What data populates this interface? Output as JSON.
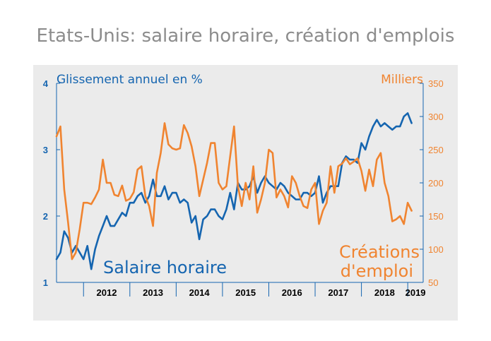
{
  "chart_data": {
    "type": "line",
    "title": "Etats-Unis: salaire horaire, création d'emplois",
    "y_left_label": "Glissement annuel en %",
    "y_right_label": "Milliers",
    "y_left_lim": [
      1,
      4
    ],
    "y_right_lim": [
      50,
      350
    ],
    "y_left_ticks": [
      "1",
      "2",
      "3",
      "4"
    ],
    "y_right_ticks": [
      "50",
      "100",
      "150",
      "200",
      "250",
      "300",
      "350"
    ],
    "x_range": [
      "2011-06",
      "2019-05"
    ],
    "x_ticks": [
      "2012",
      "2013",
      "2014",
      "2015",
      "2016",
      "2017",
      "2018",
      "2019"
    ],
    "annotations": {
      "wage": "Salaire horaire",
      "jobs_line1": "Créations",
      "jobs_line2": "d'emploi"
    },
    "colors": {
      "wage": "#1565b0",
      "jobs": "#f08430",
      "axis": "#1565b0",
      "panel": "#ebebeb"
    },
    "series": [
      {
        "name": "Salaire horaire",
        "axis": "left",
        "points": [
          [
            "2011-06",
            1.35
          ],
          [
            "2011-07",
            1.45
          ],
          [
            "2011-08",
            1.77
          ],
          [
            "2011-09",
            1.67
          ],
          [
            "2011-10",
            1.45
          ],
          [
            "2011-11",
            1.55
          ],
          [
            "2011-12",
            1.45
          ],
          [
            "2012-01",
            1.35
          ],
          [
            "2012-02",
            1.55
          ],
          [
            "2012-03",
            1.2
          ],
          [
            "2012-04",
            1.5
          ],
          [
            "2012-05",
            1.7
          ],
          [
            "2012-06",
            1.85
          ],
          [
            "2012-07",
            2.0
          ],
          [
            "2012-08",
            1.85
          ],
          [
            "2012-09",
            1.85
          ],
          [
            "2012-10",
            1.95
          ],
          [
            "2012-11",
            2.05
          ],
          [
            "2012-12",
            2.0
          ],
          [
            "2013-01",
            2.2
          ],
          [
            "2013-02",
            2.2
          ],
          [
            "2013-03",
            2.3
          ],
          [
            "2013-04",
            2.35
          ],
          [
            "2013-05",
            2.2
          ],
          [
            "2013-06",
            2.3
          ],
          [
            "2013-07",
            2.55
          ],
          [
            "2013-08",
            2.3
          ],
          [
            "2013-09",
            2.3
          ],
          [
            "2013-10",
            2.45
          ],
          [
            "2013-11",
            2.25
          ],
          [
            "2013-12",
            2.35
          ],
          [
            "2014-01",
            2.35
          ],
          [
            "2014-02",
            2.2
          ],
          [
            "2014-03",
            2.25
          ],
          [
            "2014-04",
            2.2
          ],
          [
            "2014-05",
            1.9
          ],
          [
            "2014-06",
            2.0
          ],
          [
            "2014-07",
            1.65
          ],
          [
            "2014-08",
            1.95
          ],
          [
            "2014-09",
            2.0
          ],
          [
            "2014-10",
            2.1
          ],
          [
            "2014-11",
            2.1
          ],
          [
            "2014-12",
            2.0
          ],
          [
            "2015-01",
            1.95
          ],
          [
            "2015-02",
            2.1
          ],
          [
            "2015-03",
            2.35
          ],
          [
            "2015-04",
            2.1
          ],
          [
            "2015-05",
            2.5
          ],
          [
            "2015-06",
            2.4
          ],
          [
            "2015-07",
            2.4
          ],
          [
            "2015-08",
            2.45
          ],
          [
            "2015-09",
            2.6
          ],
          [
            "2015-10",
            2.35
          ],
          [
            "2015-11",
            2.5
          ],
          [
            "2015-12",
            2.6
          ],
          [
            "2016-01",
            2.5
          ],
          [
            "2016-02",
            2.45
          ],
          [
            "2016-03",
            2.4
          ],
          [
            "2016-04",
            2.5
          ],
          [
            "2016-05",
            2.45
          ],
          [
            "2016-06",
            2.35
          ],
          [
            "2016-07",
            2.3
          ],
          [
            "2016-08",
            2.25
          ],
          [
            "2016-09",
            2.25
          ],
          [
            "2016-10",
            2.35
          ],
          [
            "2016-11",
            2.35
          ],
          [
            "2016-12",
            2.3
          ],
          [
            "2017-01",
            2.35
          ],
          [
            "2017-02",
            2.6
          ],
          [
            "2017-03",
            2.2
          ],
          [
            "2017-04",
            2.35
          ],
          [
            "2017-05",
            2.45
          ],
          [
            "2017-06",
            2.45
          ],
          [
            "2017-07",
            2.45
          ],
          [
            "2017-08",
            2.8
          ],
          [
            "2017-09",
            2.9
          ],
          [
            "2017-10",
            2.85
          ],
          [
            "2017-11",
            2.85
          ],
          [
            "2017-12",
            2.8
          ],
          [
            "2018-01",
            3.1
          ],
          [
            "2018-02",
            3.0
          ],
          [
            "2018-03",
            3.2
          ],
          [
            "2018-04",
            3.35
          ],
          [
            "2018-05",
            3.45
          ],
          [
            "2018-06",
            3.35
          ],
          [
            "2018-07",
            3.4
          ],
          [
            "2018-08",
            3.35
          ],
          [
            "2018-09",
            3.3
          ],
          [
            "2018-10",
            3.35
          ],
          [
            "2018-11",
            3.35
          ],
          [
            "2018-12",
            3.5
          ],
          [
            "2019-01",
            3.55
          ],
          [
            "2019-02",
            3.4
          ]
        ]
      },
      {
        "name": "Créations d'emploi",
        "axis": "right",
        "points": [
          [
            "2011-06",
            270
          ],
          [
            "2011-07",
            285
          ],
          [
            "2011-08",
            190
          ],
          [
            "2011-09",
            140
          ],
          [
            "2011-10",
            85
          ],
          [
            "2011-11",
            95
          ],
          [
            "2011-12",
            130
          ],
          [
            "2012-01",
            170
          ],
          [
            "2012-02",
            170
          ],
          [
            "2012-03",
            168
          ],
          [
            "2012-04",
            178
          ],
          [
            "2012-05",
            190
          ],
          [
            "2012-06",
            235
          ],
          [
            "2012-07",
            200
          ],
          [
            "2012-08",
            200
          ],
          [
            "2012-09",
            182
          ],
          [
            "2012-10",
            180
          ],
          [
            "2012-11",
            196
          ],
          [
            "2012-12",
            173
          ],
          [
            "2013-01",
            176
          ],
          [
            "2013-02",
            186
          ],
          [
            "2013-03",
            220
          ],
          [
            "2013-04",
            225
          ],
          [
            "2013-05",
            180
          ],
          [
            "2013-06",
            165
          ],
          [
            "2013-07",
            135
          ],
          [
            "2013-08",
            215
          ],
          [
            "2013-09",
            245
          ],
          [
            "2013-10",
            290
          ],
          [
            "2013-11",
            258
          ],
          [
            "2013-12",
            252
          ],
          [
            "2014-01",
            250
          ],
          [
            "2014-02",
            252
          ],
          [
            "2014-03",
            287
          ],
          [
            "2014-04",
            275
          ],
          [
            "2014-05",
            255
          ],
          [
            "2014-06",
            225
          ],
          [
            "2014-07",
            180
          ],
          [
            "2014-08",
            205
          ],
          [
            "2014-09",
            230
          ],
          [
            "2014-10",
            260
          ],
          [
            "2014-11",
            260
          ],
          [
            "2014-12",
            200
          ],
          [
            "2015-01",
            190
          ],
          [
            "2015-02",
            195
          ],
          [
            "2015-03",
            240
          ],
          [
            "2015-04",
            285
          ],
          [
            "2015-05",
            195
          ],
          [
            "2015-06",
            165
          ],
          [
            "2015-07",
            200
          ],
          [
            "2015-08",
            175
          ],
          [
            "2015-09",
            225
          ],
          [
            "2015-10",
            155
          ],
          [
            "2015-11",
            175
          ],
          [
            "2015-12",
            200
          ],
          [
            "2016-01",
            250
          ],
          [
            "2016-02",
            245
          ],
          [
            "2016-03",
            178
          ],
          [
            "2016-04",
            190
          ],
          [
            "2016-05",
            180
          ],
          [
            "2016-06",
            163
          ],
          [
            "2016-07",
            210
          ],
          [
            "2016-08",
            200
          ],
          [
            "2016-09",
            180
          ],
          [
            "2016-10",
            165
          ],
          [
            "2016-11",
            162
          ],
          [
            "2016-12",
            190
          ],
          [
            "2017-01",
            200
          ],
          [
            "2017-02",
            138
          ],
          [
            "2017-03",
            158
          ],
          [
            "2017-04",
            170
          ],
          [
            "2017-05",
            225
          ],
          [
            "2017-06",
            185
          ],
          [
            "2017-07",
            225
          ],
          [
            "2017-08",
            229
          ],
          [
            "2017-09",
            237
          ],
          [
            "2017-10",
            228
          ],
          [
            "2017-11",
            232
          ],
          [
            "2017-12",
            237
          ],
          [
            "2018-01",
            218
          ],
          [
            "2018-02",
            188
          ],
          [
            "2018-03",
            220
          ],
          [
            "2018-04",
            195
          ],
          [
            "2018-05",
            235
          ],
          [
            "2018-06",
            245
          ],
          [
            "2018-07",
            200
          ],
          [
            "2018-08",
            180
          ],
          [
            "2018-09",
            142
          ],
          [
            "2018-10",
            145
          ],
          [
            "2018-11",
            150
          ],
          [
            "2018-12",
            138
          ],
          [
            "2019-01",
            170
          ],
          [
            "2019-02",
            158
          ]
        ]
      }
    ]
  }
}
